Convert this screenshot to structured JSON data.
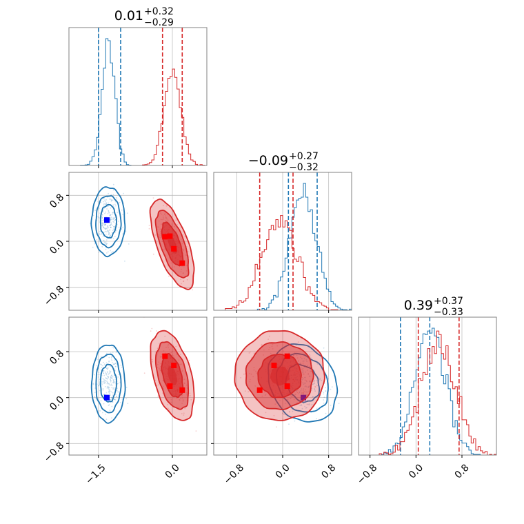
{
  "colors": {
    "series_a": "#1f77b4",
    "series_b": "#d62728",
    "grid": "#b0b0b0",
    "frame": "#808080",
    "marker_a": "#0000ff",
    "marker_b": "#ff0000"
  },
  "chart_data": {
    "type": "corner",
    "parameters": 3,
    "grid": true,
    "marginal_titles": [
      {
        "value": "0.01",
        "upper": "+0.32",
        "lower": "−0.29"
      },
      {
        "value": "−0.09",
        "upper": "+0.27",
        "lower": "−0.32"
      },
      {
        "value": "0.39",
        "upper": "+0.37",
        "lower": "−0.33"
      }
    ],
    "x_axes": [
      {
        "range": [
          -2.1,
          0.7
        ],
        "ticks": [
          -1.5,
          0.0
        ],
        "tick_labels": [
          "−1.5",
          "0.0"
        ]
      },
      {
        "range": [
          -1.2,
          1.2
        ],
        "ticks": [
          -0.8,
          0.0,
          0.8
        ],
        "tick_labels": [
          "−0.8",
          "0.0",
          "0.8"
        ]
      },
      {
        "range": [
          -1.0,
          1.4
        ],
        "ticks": [
          -0.8,
          0.0,
          0.8
        ],
        "tick_labels": [
          "−0.8",
          "0.0",
          "0.8"
        ]
      }
    ],
    "y_axes": [
      {
        "range": [
          -1.2,
          1.2
        ],
        "ticks": [
          -0.8,
          0.0,
          0.8
        ],
        "tick_labels": [
          "−0.8",
          "0.0",
          "0.8"
        ]
      },
      {
        "range": [
          -1.0,
          1.4
        ],
        "ticks": [
          -0.8,
          0.0,
          0.8
        ],
        "tick_labels": [
          "−0.8",
          "0.0",
          "0.8"
        ]
      }
    ],
    "series": [
      {
        "color": "#1f77b4",
        "fill": false,
        "mean": [
          -1.3,
          0.35,
          0.25
        ],
        "sd": [
          0.13,
          0.23,
          0.26
        ],
        "cov": [
          [
            0,
            1,
            0.0
          ],
          [
            0,
            2,
            0.0
          ],
          [
            1,
            2,
            -0.2
          ]
        ],
        "quantiles": [
          [
            -1.5,
            -1.05
          ],
          [
            0.1,
            0.6
          ],
          [
            -0.27,
            0.24
          ]
        ],
        "markers": [
          {
            "pair": [
              0,
              1
            ],
            "x": -1.33,
            "y": 0.37
          },
          {
            "pair": [
              0,
              2
            ],
            "x": -1.33,
            "y": 0.0
          },
          {
            "pair": [
              1,
              2
            ],
            "x": 0.36,
            "y": 0.0
          }
        ]
      },
      {
        "color": "#d62728",
        "fill": true,
        "mean": [
          0.0,
          -0.05,
          0.38
        ],
        "sd": [
          0.17,
          0.3,
          0.3
        ],
        "cov": [
          [
            0,
            1,
            -0.65
          ],
          [
            0,
            2,
            -0.45
          ],
          [
            1,
            2,
            0.0
          ]
        ],
        "quantiles": [
          [
            -0.2,
            0.2
          ],
          [
            -0.4,
            0.18
          ],
          [
            0.04,
            0.75
          ]
        ],
        "markers": [
          {
            "pair": [
              0,
              1
            ],
            "x": -0.15,
            "y": 0.08
          },
          {
            "pair": [
              0,
              1
            ],
            "x": -0.05,
            "y": 0.09
          },
          {
            "pair": [
              0,
              1
            ],
            "x": 0.03,
            "y": -0.13
          },
          {
            "pair": [
              0,
              1
            ],
            "x": 0.2,
            "y": -0.38
          },
          {
            "pair": [
              0,
              2
            ],
            "x": -0.15,
            "y": 0.72
          },
          {
            "pair": [
              0,
              2
            ],
            "x": 0.03,
            "y": 0.56
          },
          {
            "pair": [
              0,
              2
            ],
            "x": -0.05,
            "y": 0.2
          },
          {
            "pair": [
              0,
              2
            ],
            "x": 0.2,
            "y": 0.13
          },
          {
            "pair": [
              1,
              2
            ],
            "x": -0.4,
            "y": 0.13
          },
          {
            "pair": [
              1,
              2
            ],
            "x": -0.15,
            "y": 0.56
          },
          {
            "pair": [
              1,
              2
            ],
            "x": 0.08,
            "y": 0.72
          },
          {
            "pair": [
              1,
              2
            ],
            "x": 0.08,
            "y": 0.2
          }
        ]
      }
    ]
  }
}
